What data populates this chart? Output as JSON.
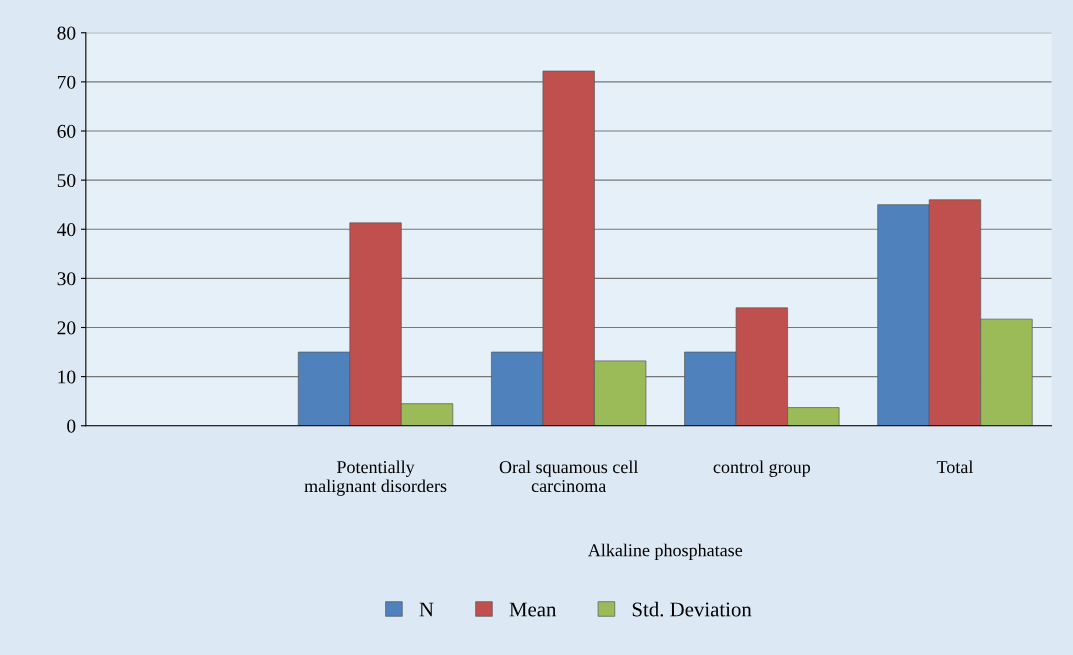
{
  "chart_data": {
    "type": "bar",
    "categories": [
      null,
      "Potentially\nmalignant disorders",
      "Oral squamous cell\ncarcinoma",
      "control group",
      "Total"
    ],
    "xlabel": "Alkaline phosphatase",
    "series": [
      {
        "name": "N",
        "color": "#4f81bd",
        "values": [
          null,
          15,
          15,
          15,
          45
        ]
      },
      {
        "name": "Mean",
        "color": "#c0504d",
        "values": [
          null,
          41.3,
          72.2,
          24,
          46
        ]
      },
      {
        "name": "Std. Deviation",
        "color": "#9bbb59",
        "values": [
          null,
          4.5,
          13.2,
          3.7,
          21.7
        ]
      }
    ],
    "ylim": [
      0,
      80
    ],
    "yticks": [
      0,
      10,
      20,
      30,
      40,
      50,
      60,
      70,
      80
    ],
    "grid": "y",
    "legend": "bottom"
  }
}
